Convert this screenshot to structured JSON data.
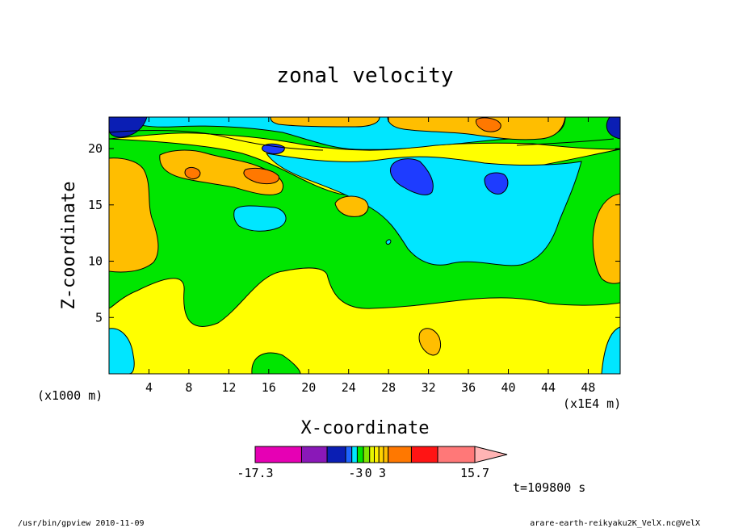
{
  "chart_data": {
    "type": "contour",
    "title": "zonal velocity",
    "xlabel": "X-coordinate",
    "ylabel": "Z-coordinate",
    "x_unit": "(x1000 m)",
    "x_scale_label": "(x1E4 m)",
    "x_ticks": [
      "4",
      "8",
      "12",
      "16",
      "20",
      "24",
      "28",
      "32",
      "36",
      "40",
      "44",
      "48"
    ],
    "y_ticks": [
      "5",
      "10",
      "15",
      "20"
    ],
    "xlim": [
      0,
      51.2
    ],
    "ylim": [
      0,
      22.8
    ],
    "colorbar": {
      "tick_labels": [
        "-17.3",
        "-3",
        "0",
        "3",
        "15.7"
      ],
      "range": [
        -17.3,
        15.7
      ],
      "colors": [
        "#e600b4",
        "#8a18b8",
        "#0a1eb4",
        "#1e64ff",
        "#00e6ff",
        "#00e600",
        "#7de600",
        "#e6f500",
        "#fff000",
        "#ffd200",
        "#ffbe00",
        "#ff7800",
        "#ff1414",
        "#ff7878"
      ],
      "extension_color": "#ffb4b4"
    },
    "time_label": "t=109800 s"
  },
  "footer": {
    "left": "/usr/bin/gpview  2010-11-09",
    "right": "arare-earth-reikyaku2K_VelX.nc@VelX"
  }
}
